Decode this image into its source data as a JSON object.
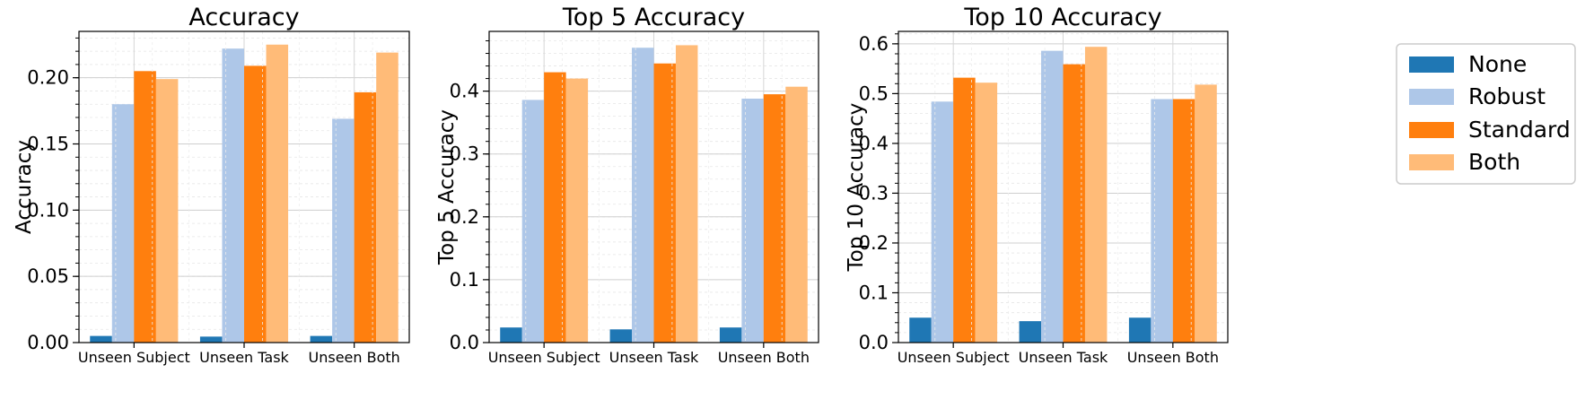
{
  "legend": {
    "placement": "outside-right",
    "entries": [
      "None",
      "Robust",
      "Standard",
      "Both"
    ]
  },
  "colors": {
    "None": "#1f77b4",
    "Robust": "#aec7e8",
    "Standard": "#ff7f0e",
    "Both": "#ffbb78"
  },
  "chart_data": [
    {
      "type": "bar",
      "title": "Accuracy",
      "xlabel": "",
      "ylabel": "Accuracy",
      "categories": [
        "Unseen Subject",
        "Unseen Task",
        "Unseen Both"
      ],
      "ylim": [
        0,
        0.235
      ],
      "yticks": [
        0.0,
        0.05,
        0.1,
        0.15,
        0.2
      ],
      "ytick_labels": [
        "0.00",
        "0.05",
        "0.10",
        "0.15",
        "0.20"
      ],
      "grid": true,
      "series": [
        {
          "name": "None",
          "values": [
            0.005,
            0.0045,
            0.005
          ]
        },
        {
          "name": "Robust",
          "values": [
            0.18,
            0.222,
            0.169
          ]
        },
        {
          "name": "Standard",
          "values": [
            0.205,
            0.209,
            0.189
          ]
        },
        {
          "name": "Both",
          "values": [
            0.199,
            0.225,
            0.219
          ]
        }
      ]
    },
    {
      "type": "bar",
      "title": "Top 5 Accuracy",
      "xlabel": "",
      "ylabel": "Top 5 Accuracy",
      "categories": [
        "Unseen Subject",
        "Unseen Task",
        "Unseen Both"
      ],
      "ylim": [
        0,
        0.495
      ],
      "yticks": [
        0.0,
        0.1,
        0.2,
        0.3,
        0.4
      ],
      "ytick_labels": [
        "0.0",
        "0.1",
        "0.2",
        "0.3",
        "0.4"
      ],
      "grid": true,
      "series": [
        {
          "name": "None",
          "values": [
            0.024,
            0.021,
            0.024
          ]
        },
        {
          "name": "Robust",
          "values": [
            0.386,
            0.469,
            0.388
          ]
        },
        {
          "name": "Standard",
          "values": [
            0.43,
            0.444,
            0.395
          ]
        },
        {
          "name": "Both",
          "values": [
            0.42,
            0.473,
            0.407
          ]
        }
      ]
    },
    {
      "type": "bar",
      "title": "Top 10 Accuracy",
      "xlabel": "",
      "ylabel": "Top 10 Accuracy",
      "categories": [
        "Unseen Subject",
        "Unseen Task",
        "Unseen Both"
      ],
      "ylim": [
        0,
        0.625
      ],
      "yticks": [
        0.0,
        0.1,
        0.2,
        0.3,
        0.4,
        0.5,
        0.6
      ],
      "ytick_labels": [
        "0.0",
        "0.1",
        "0.2",
        "0.3",
        "0.4",
        "0.5",
        "0.6"
      ],
      "grid": true,
      "series": [
        {
          "name": "None",
          "values": [
            0.05,
            0.043,
            0.05
          ]
        },
        {
          "name": "Robust",
          "values": [
            0.484,
            0.586,
            0.489
          ]
        },
        {
          "name": "Standard",
          "values": [
            0.532,
            0.559,
            0.489
          ]
        },
        {
          "name": "Both",
          "values": [
            0.522,
            0.594,
            0.518
          ]
        }
      ]
    }
  ]
}
